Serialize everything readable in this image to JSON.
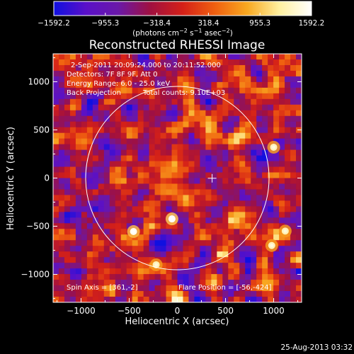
{
  "chart_data": {
    "type": "heatmap",
    "title": "Reconstructed RHESSI Image",
    "xlabel": "Heliocentric X (arcsec)",
    "ylabel": "Heliocentric Y (arcsec)",
    "xlim": [
      -1290,
      1290
    ],
    "ylim": [
      -1290,
      1290
    ],
    "x_ticks": [
      -1000,
      -500,
      0,
      500,
      1000
    ],
    "y_ticks": [
      -1000,
      -500,
      0,
      500,
      1000
    ],
    "x_tick_labels": [
      "−1000",
      "−500",
      "0",
      "500",
      "1000"
    ],
    "y_tick_labels": [
      "−1000",
      "−500",
      "0",
      "500",
      "1000"
    ],
    "colorbar": {
      "range": [
        -1592.2,
        1592.2
      ],
      "ticks": [
        -1592.2,
        -955.3,
        -318.4,
        318.4,
        955.3,
        1592.2
      ],
      "tick_labels": [
        "−1592.2",
        "−955.3",
        "−318.4",
        "318.4",
        "955.3",
        "1592.2"
      ],
      "units_main": "(photons cm",
      "units_exp1": "−2",
      "units_mid": " s",
      "units_exp2": "−1",
      "units_mid2": " asec",
      "units_exp3": "−2",
      "units_end": ")",
      "colors": [
        "#1010e0",
        "#5a10c8",
        "#6a18a8",
        "#a01040",
        "#d42018",
        "#f06010",
        "#f8a820",
        "#fff0a0",
        "#ffffff"
      ]
    },
    "annotations": {
      "time": "2-Sep-2011 20:09:24.000 to 20:11:52.000",
      "detectors": "Detectors: 7F 8F 9F, Att 0",
      "energy": "Energy Range: 6.0 - 25.0 keV",
      "method": "Back Projection",
      "counts": "Total counts: 9.10E+03",
      "spin_axis": "Spin Axis = [361,-2]",
      "flare_position": "Flare Position = [-56,-424]"
    },
    "solar_limb": {
      "center": [
        0,
        0
      ],
      "radius": 952
    },
    "crosshair": [
      361,
      -2
    ],
    "bright_sources": [
      {
        "x": -56,
        "y": -424,
        "level": 1.0
      },
      {
        "x": -455,
        "y": -555,
        "level": 0.9
      },
      {
        "x": 1000,
        "y": 320,
        "level": 0.55
      },
      {
        "x": -220,
        "y": -900,
        "level": 0.5
      },
      {
        "x": 980,
        "y": -700,
        "level": 0.55
      },
      {
        "x": 1120,
        "y": -550,
        "level": 0.5
      }
    ],
    "grid": false
  },
  "footer": {
    "date": "25-Aug-2013 03:32"
  }
}
